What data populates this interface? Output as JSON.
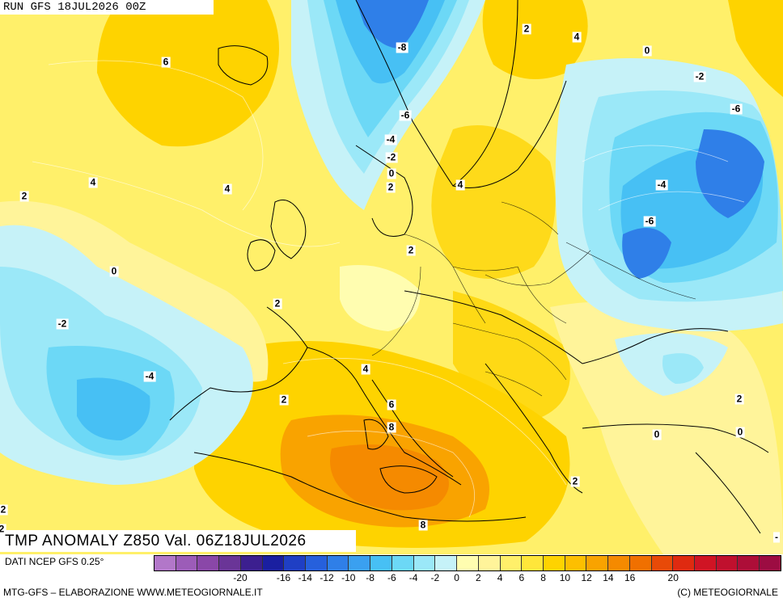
{
  "header": {
    "run_label": "RUN GFS 18JUL2026 00Z"
  },
  "title": "TMP ANOMALY Z850 Val. 06Z18JUL2026",
  "source": "DATI NCEP GFS 0.25°",
  "footer": {
    "left": "MTG-GFS – ELABORAZIONE WWW.METEOGIORNALE.IT",
    "right": "(C) METEOGIORNALE"
  },
  "legend": {
    "ticks": [
      "-20",
      "-18",
      "-16",
      "-14",
      "-12",
      "-10",
      "-8",
      "-6",
      "-4",
      "-2",
      "0",
      "2",
      "4",
      "6",
      "8",
      "10",
      "12",
      "14",
      "16",
      "18",
      "20"
    ],
    "tick_labels": [
      "-20",
      "-16",
      "-14",
      "-12",
      "-10",
      "-8",
      "-6",
      "-4",
      "-2",
      "0",
      "2",
      "4",
      "6",
      "8",
      "10",
      "12",
      "14",
      "16",
      "20"
    ],
    "colors": [
      "#b277c9",
      "#9c5cb8",
      "#8a47a8",
      "#6a3597",
      "#3c1f8f",
      "#1a1fa0",
      "#1f3fc4",
      "#2660dc",
      "#2f7fe8",
      "#3aa0f0",
      "#47c0f4",
      "#6cd8f6",
      "#9be8f8",
      "#c6f2f8",
      "#fffdb0",
      "#fff49a",
      "#fff06a",
      "#ffe63a",
      "#fed300",
      "#fdbf00",
      "#f9a300",
      "#f58a00",
      "#f07000",
      "#e84a08",
      "#df2a10",
      "#d01424",
      "#c0102e",
      "#ad0e38",
      "#9c0c42"
    ]
  },
  "contour_labels": [
    {
      "text": "6"
    },
    {
      "text": "4"
    },
    {
      "text": "4"
    },
    {
      "text": "2"
    },
    {
      "text": "0"
    },
    {
      "text": "-2"
    },
    {
      "text": "-4"
    },
    {
      "text": "2"
    },
    {
      "text": "2"
    },
    {
      "text": "4"
    },
    {
      "text": "2"
    },
    {
      "text": "6"
    },
    {
      "text": "8"
    },
    {
      "text": "8"
    },
    {
      "text": "-8"
    },
    {
      "text": "-6"
    },
    {
      "text": "-4"
    },
    {
      "text": "-2"
    },
    {
      "text": "0"
    },
    {
      "text": "2"
    },
    {
      "text": "2"
    },
    {
      "text": "4"
    },
    {
      "text": "4"
    },
    {
      "text": "2"
    },
    {
      "text": "0"
    },
    {
      "text": "-2"
    },
    {
      "text": "-6"
    },
    {
      "text": "-4"
    },
    {
      "text": "-6"
    },
    {
      "text": "0"
    },
    {
      "text": "0"
    },
    {
      "text": "2"
    },
    {
      "text": "2"
    },
    {
      "text": "2"
    },
    {
      "text": "-"
    }
  ]
}
